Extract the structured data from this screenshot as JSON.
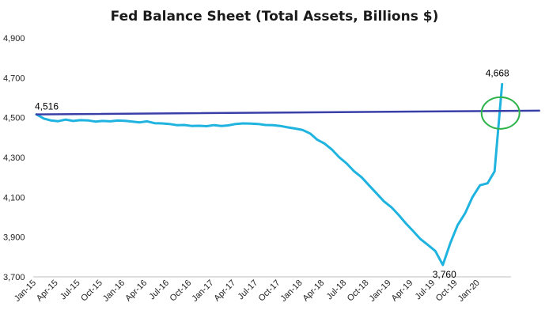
{
  "chart_data": {
    "type": "line",
    "title": "Fed Balance Sheet (Total Assets, Billions $)",
    "xlabel": "",
    "ylabel": "",
    "ylim": [
      3700,
      4900
    ],
    "y_ticks": [
      "3,700",
      "3,900",
      "4,100",
      "4,300",
      "4,500",
      "4,700",
      "4,900"
    ],
    "x_ticks": [
      "Jan-15",
      "Apr-15",
      "Jul-15",
      "Oct-15",
      "Jan-16",
      "Apr-16",
      "Jul-16",
      "Oct-16",
      "Jan-17",
      "Apr-17",
      "Jul-17",
      "Oct-17",
      "Jan-18",
      "Apr-18",
      "Jul-18",
      "Oct-18",
      "Jan-19",
      "Apr-19",
      "Jul-19",
      "Oct-19",
      "Jan-20"
    ],
    "grid": false,
    "legend": "none",
    "series": [
      {
        "color": "#1fb3e0",
        "x": [
          "2015-01",
          "2015-02",
          "2015-03",
          "2015-04",
          "2015-05",
          "2015-06",
          "2015-07",
          "2015-08",
          "2015-09",
          "2015-10",
          "2015-11",
          "2015-12",
          "2016-01",
          "2016-02",
          "2016-03",
          "2016-04",
          "2016-05",
          "2016-06",
          "2016-07",
          "2016-08",
          "2016-09",
          "2016-10",
          "2016-11",
          "2016-12",
          "2017-01",
          "2017-02",
          "2017-03",
          "2017-04",
          "2017-05",
          "2017-06",
          "2017-07",
          "2017-08",
          "2017-09",
          "2017-10",
          "2017-11",
          "2017-12",
          "2018-01",
          "2018-02",
          "2018-03",
          "2018-04",
          "2018-05",
          "2018-06",
          "2018-07",
          "2018-08",
          "2018-09",
          "2018-10",
          "2018-11",
          "2018-12",
          "2019-01",
          "2019-02",
          "2019-03",
          "2019-04",
          "2019-05",
          "2019-06",
          "2019-07",
          "2019-08",
          "2019-09",
          "2019-10",
          "2019-11",
          "2019-12",
          "2020-01",
          "2020-02",
          "2020-03",
          "2020-04"
        ],
        "values": [
          4516,
          4495,
          4486,
          4482,
          4490,
          4483,
          4487,
          4486,
          4480,
          4483,
          4481,
          4485,
          4484,
          4480,
          4476,
          4481,
          4472,
          4471,
          4468,
          4462,
          4463,
          4458,
          4459,
          4457,
          4462,
          4458,
          4461,
          4468,
          4471,
          4470,
          4468,
          4463,
          4462,
          4458,
          4451,
          4445,
          4438,
          4420,
          4390,
          4370,
          4340,
          4300,
          4270,
          4230,
          4200,
          4160,
          4120,
          4080,
          4050,
          4010,
          3970,
          3930,
          3890,
          3860,
          3830,
          3760,
          3870,
          3960,
          4020,
          4100,
          4160,
          4170,
          4230,
          4668
        ]
      },
      {
        "color": "#3a3fa8",
        "x": [
          "2015-01",
          "2020-09"
        ],
        "values": [
          4516,
          4535
        ]
      }
    ],
    "annotations": [
      {
        "text": "4,516",
        "x": "2015-01",
        "y": 4516
      },
      {
        "text": "3,760",
        "x": "2019-08",
        "y": 3760
      },
      {
        "text": "4,668",
        "x": "2020-04",
        "y": 4668
      }
    ],
    "highlight_ellipse": {
      "color": "#2db34a",
      "x": "2020-04",
      "y": 4535
    }
  }
}
